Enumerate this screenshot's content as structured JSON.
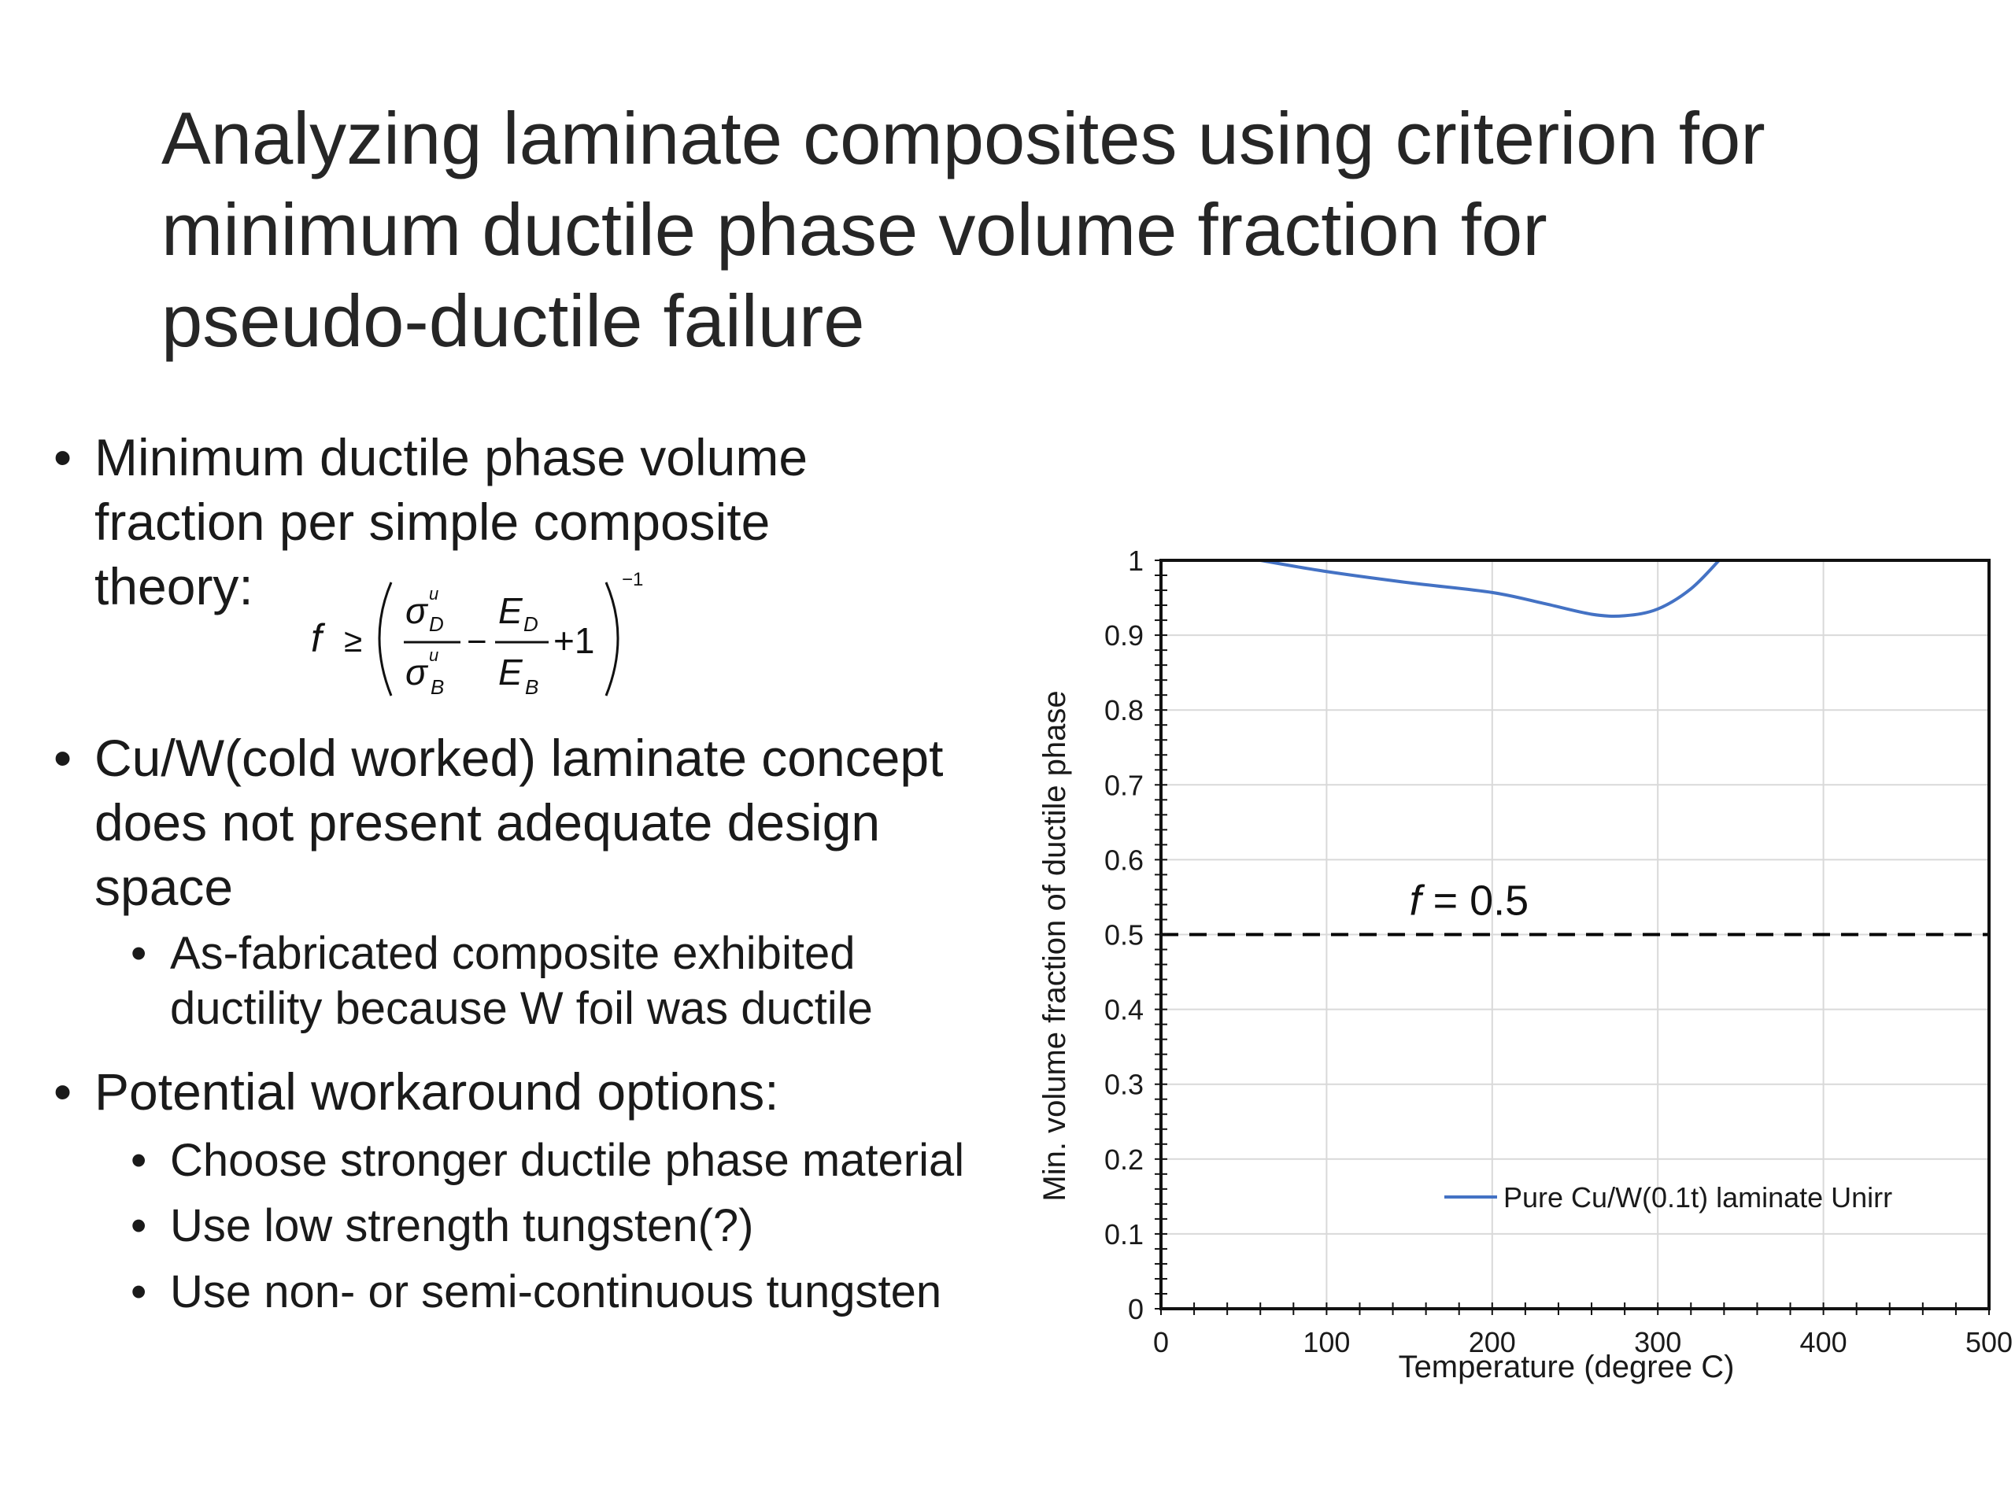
{
  "slide": {
    "title_lines": [
      "Analyzing laminate composites using criterion for",
      "minimum ductile phase volume fraction for",
      "pseudo-ductile failure"
    ]
  },
  "bullets": {
    "b1": {
      "marker": "•",
      "lines": [
        "Minimum ductile phase volume",
        "fraction per simple composite",
        "theory:"
      ]
    },
    "b2": {
      "marker": "•",
      "lines": [
        "Cu/W(cold worked) laminate concept",
        "does not present adequate design",
        "space"
      ],
      "sub": {
        "marker": "•",
        "lines": [
          "As-fabricated composite exhibited",
          "ductility because W foil was ductile"
        ]
      }
    },
    "b3": {
      "marker": "•",
      "lines": [
        "Potential workaround options:"
      ],
      "subs": [
        {
          "marker": "•",
          "text": "Choose stronger ductile phase material"
        },
        {
          "marker": "•",
          "text": "Use low strength tungsten(?)"
        },
        {
          "marker": "•",
          "text": "Use non- or semi-continuous tungsten"
        }
      ]
    }
  },
  "formula": {
    "lhs": "f",
    "relation": "≥",
    "sigma": "σ",
    "sup_u": "u",
    "sub_D": "D",
    "sub_B": "B",
    "E": "E",
    "minus": "−",
    "plus_one": "+1",
    "exponent": "−1"
  },
  "chart_data": {
    "type": "line",
    "xlabel": "Temperature (degree C)",
    "ylabel": "Min. volume fraction of ductile phase",
    "xlim": [
      0,
      500
    ],
    "ylim": [
      0,
      1
    ],
    "x_ticks": [
      0,
      100,
      200,
      300,
      400,
      500
    ],
    "y_ticks": [
      0,
      0.1,
      0.2,
      0.3,
      0.4,
      0.5,
      0.6,
      0.7,
      0.8,
      0.9,
      1
    ],
    "x_tick_labels": [
      "0",
      "100",
      "200",
      "300",
      "400",
      "500"
    ],
    "y_tick_labels": [
      "0",
      "0.1",
      "0.2",
      "0.3",
      "0.4",
      "0.5",
      "0.6",
      "0.7",
      "0.8",
      "0.9",
      "1"
    ],
    "grid": true,
    "legend_position": "bottom-right",
    "series": [
      {
        "name": "Pure Cu/W(0.1t) laminate Unirr",
        "color": "#4472c4",
        "x": [
          60,
          100,
          150,
          200,
          230,
          260,
          280,
          300,
          320,
          337
        ],
        "y": [
          1.0,
          0.985,
          0.97,
          0.957,
          0.943,
          0.928,
          0.926,
          0.935,
          0.962,
          1.0
        ]
      }
    ],
    "reference_line": {
      "y": 0.5,
      "style": "dashed",
      "color": "#000000"
    },
    "annotation": {
      "italic": "f",
      "text": " = 0.5",
      "x": 150,
      "y": 0.545
    }
  }
}
